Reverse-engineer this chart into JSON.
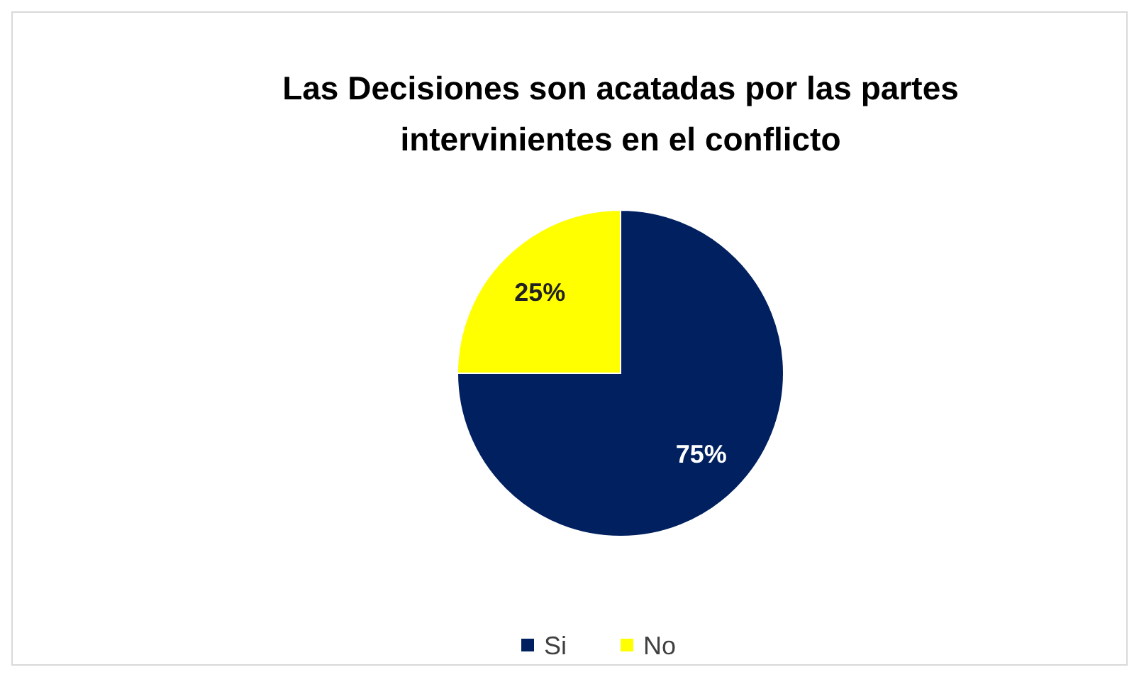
{
  "chart_data": {
    "type": "pie",
    "title": "Las Decisiones son acatadas por las partes intervinientes en el conflicto",
    "categories": [
      "Si",
      "No"
    ],
    "values": [
      75,
      25
    ],
    "colors": [
      "#002060",
      "#ffff00"
    ],
    "value_labels": [
      "75%",
      "25%"
    ],
    "legend": "bottom"
  }
}
